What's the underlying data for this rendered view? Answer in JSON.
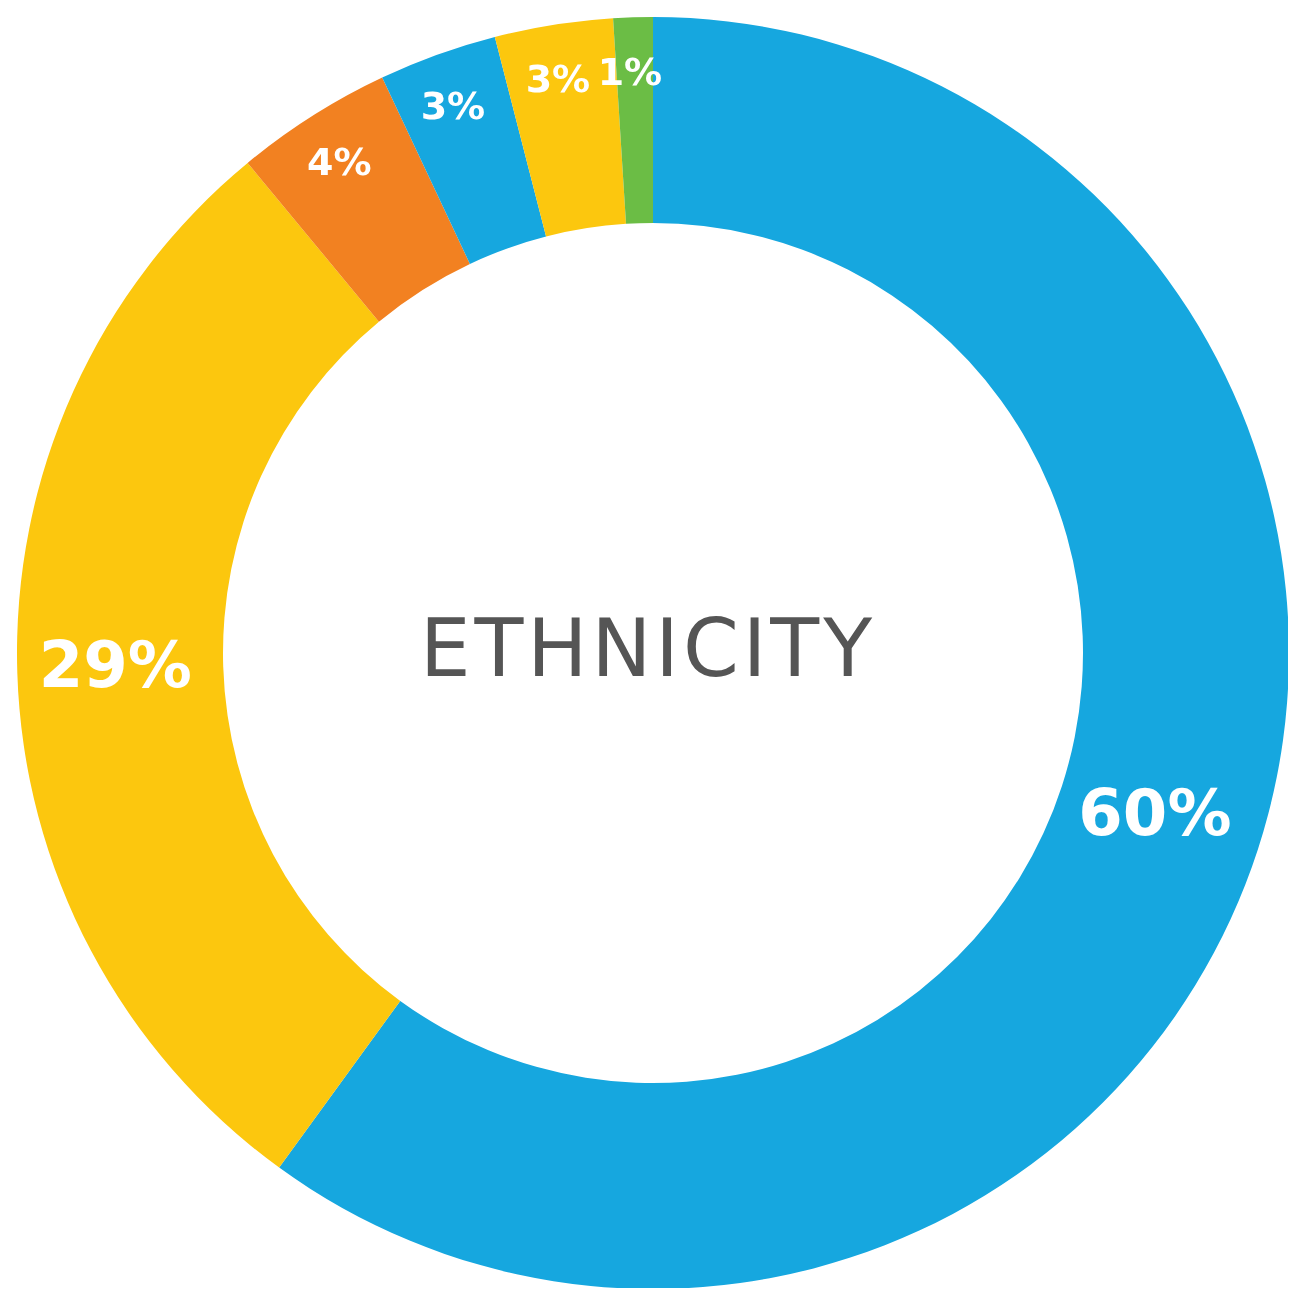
{
  "chart_data": {
    "type": "donut",
    "title": "ETHNICITY",
    "categories": [
      null,
      null,
      null,
      null,
      null,
      null
    ],
    "values": [
      60,
      29,
      4,
      3,
      3,
      1
    ],
    "colors": [
      "#16a7df",
      "#fcc70e",
      "#f28121",
      "#16a7df",
      "#fcc70e",
      "#6bbd45"
    ],
    "value_labels": [
      "60%",
      "29%",
      "4%",
      "3%",
      "3%",
      "1%"
    ]
  }
}
